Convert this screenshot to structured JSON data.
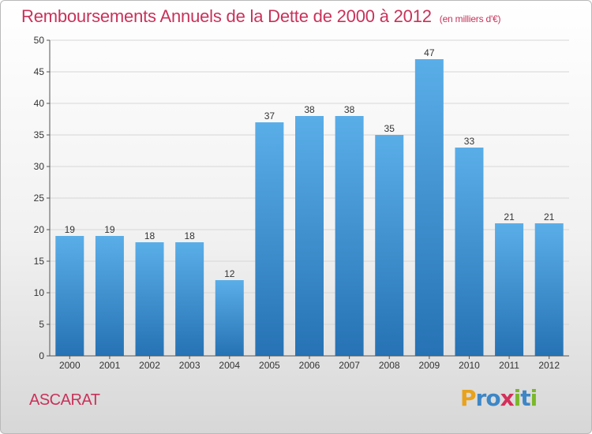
{
  "title": "Remboursements Annuels de la Dette de 2000 à 2012",
  "subtitle": "(en milliers d'€)",
  "town": "ASCARAT",
  "logo": {
    "letters": [
      "P",
      "r",
      "o",
      "x",
      "i",
      "t",
      "i"
    ],
    "colors": [
      "#e8a21c",
      "#3d86c6",
      "#3d86c6",
      "#d42f5c",
      "#7bb82a",
      "#3d86c6",
      "#7bb82a"
    ]
  },
  "colors": {
    "bar": "#3a8fd6",
    "bar_light": "#5aaee8",
    "bar_dark": "#2672b4",
    "title": "#c8325a"
  },
  "chart_data": {
    "type": "bar",
    "title": "Remboursements Annuels de la Dette de 2000 à 2012",
    "subtitle": "(en milliers d'€)",
    "categories": [
      "2000",
      "2001",
      "2002",
      "2003",
      "2004",
      "2005",
      "2006",
      "2007",
      "2008",
      "2009",
      "2010",
      "2011",
      "2012"
    ],
    "values": [
      19,
      19,
      18,
      18,
      12,
      37,
      38,
      38,
      35,
      47,
      33,
      21,
      21
    ],
    "ylim": [
      0,
      50
    ],
    "yticks": [
      0,
      5,
      10,
      15,
      20,
      25,
      30,
      35,
      40,
      45,
      50
    ],
    "grid": true,
    "data_labels": true
  }
}
